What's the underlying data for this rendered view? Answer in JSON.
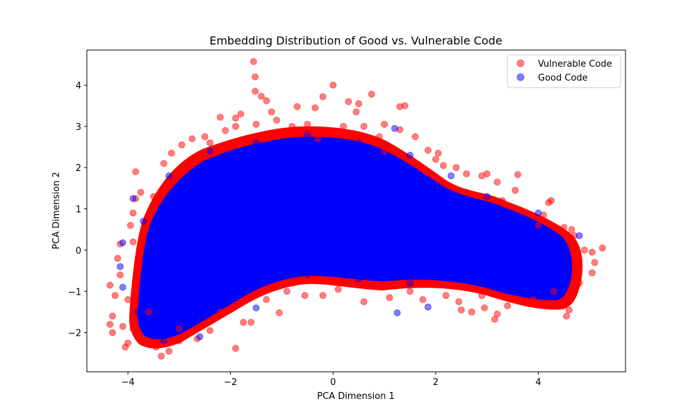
{
  "chart_data": {
    "type": "scatter",
    "title": "Embedding Distribution of Good vs. Vulnerable Code",
    "xlabel": "PCA Dimension 1",
    "ylabel": "PCA Dimension 2",
    "xlim": [
      -4.8,
      5.7
    ],
    "ylim": [
      -2.95,
      4.85
    ],
    "xticks": [
      -4,
      -2,
      0,
      2,
      4
    ],
    "xtick_labels": [
      "−4",
      "−2",
      "0",
      "2",
      "4"
    ],
    "yticks": [
      -2,
      -1,
      0,
      1,
      2,
      3,
      4
    ],
    "ytick_labels": [
      "−2",
      "−1",
      "0",
      "1",
      "2",
      "3",
      "4"
    ],
    "grid": false,
    "legend_position": "top-right",
    "series": [
      {
        "name": "Vulnerable Code",
        "color": "#ff0000",
        "alpha": 0.5,
        "points": [
          [
            -1.55,
            4.57
          ],
          [
            -1.52,
            4.2
          ],
          [
            -1.52,
            3.85
          ],
          [
            -1.4,
            3.73
          ],
          [
            -1.3,
            3.62
          ],
          [
            0.0,
            4.0
          ],
          [
            0.75,
            3.78
          ],
          [
            -0.2,
            3.72
          ],
          [
            0.3,
            3.6
          ],
          [
            0.5,
            3.55
          ],
          [
            1.3,
            3.48
          ],
          [
            1.4,
            3.5
          ],
          [
            -0.7,
            3.48
          ],
          [
            -0.35,
            3.45
          ],
          [
            0.45,
            3.35
          ],
          [
            -1.8,
            3.3
          ],
          [
            -1.2,
            3.35
          ],
          [
            -2.2,
            3.22
          ],
          [
            -1.9,
            3.2
          ],
          [
            -1.1,
            3.15
          ],
          [
            1.0,
            3.05
          ],
          [
            1.3,
            2.92
          ],
          [
            1.6,
            2.75
          ],
          [
            1.85,
            2.42
          ],
          [
            2.0,
            2.2
          ],
          [
            2.05,
            2.35
          ],
          [
            2.15,
            2.05
          ],
          [
            2.4,
            2.0
          ],
          [
            2.6,
            1.85
          ],
          [
            2.9,
            1.8
          ],
          [
            3.0,
            1.85
          ],
          [
            3.2,
            1.65
          ],
          [
            3.6,
            1.83
          ],
          [
            3.55,
            1.45
          ],
          [
            4.25,
            1.2
          ],
          [
            4.2,
            1.15
          ],
          [
            4.1,
            0.85
          ],
          [
            4.5,
            0.55
          ],
          [
            4.65,
            0.5
          ],
          [
            4.7,
            0.35
          ],
          [
            5.25,
            0.05
          ],
          [
            5.05,
            -0.05
          ],
          [
            5.1,
            -0.3
          ],
          [
            5.05,
            -0.55
          ],
          [
            4.6,
            -1.45
          ],
          [
            4.55,
            -1.6
          ],
          [
            3.9,
            -1.2
          ],
          [
            3.4,
            -1.35
          ],
          [
            3.2,
            -1.55
          ],
          [
            3.15,
            -1.68
          ],
          [
            2.95,
            -1.4
          ],
          [
            2.7,
            -1.5
          ],
          [
            2.5,
            -1.45
          ],
          [
            2.45,
            -1.25
          ],
          [
            1.75,
            -1.2
          ],
          [
            1.1,
            -1.15
          ],
          [
            0.6,
            -1.25
          ],
          [
            -0.2,
            -1.1
          ],
          [
            -0.55,
            -1.1
          ],
          [
            -1.05,
            -1.52
          ],
          [
            -1.6,
            -1.75
          ],
          [
            -1.75,
            -1.75
          ],
          [
            -1.9,
            -2.38
          ],
          [
            -2.4,
            -1.95
          ],
          [
            -2.65,
            -2.15
          ],
          [
            -3.0,
            -2.2
          ],
          [
            -3.2,
            -2.45
          ],
          [
            -3.35,
            -2.57
          ],
          [
            -3.45,
            -2.35
          ],
          [
            -3.75,
            -2.15
          ],
          [
            -4.0,
            -2.25
          ],
          [
            -4.05,
            -2.35
          ],
          [
            -4.1,
            -1.85
          ],
          [
            -4.3,
            -2.0
          ],
          [
            -4.3,
            -1.6
          ],
          [
            -4.35,
            -1.8
          ],
          [
            -4.25,
            -1.1
          ],
          [
            -4.35,
            -0.85
          ],
          [
            -4.15,
            -0.6
          ],
          [
            -4.2,
            -0.2
          ],
          [
            -4.15,
            0.15
          ],
          [
            -3.95,
            0.6
          ],
          [
            -3.9,
            0.9
          ],
          [
            -3.85,
            1.25
          ],
          [
            -3.75,
            1.4
          ],
          [
            -3.85,
            1.9
          ],
          [
            -3.3,
            2.1
          ],
          [
            -3.15,
            2.35
          ],
          [
            -2.95,
            2.55
          ],
          [
            -2.75,
            2.7
          ],
          [
            -2.5,
            2.75
          ],
          [
            -2.4,
            2.6
          ],
          [
            -2.1,
            2.9
          ],
          [
            -1.9,
            3.0
          ],
          [
            -1.5,
            3.05
          ],
          [
            -0.8,
            3.0
          ],
          [
            -0.5,
            3.05
          ],
          [
            0.2,
            3.0
          ],
          [
            0.6,
            3.0
          ],
          [
            0.9,
            2.75
          ],
          [
            -3.6,
            -1.5
          ],
          [
            -3.0,
            -1.9
          ],
          [
            -2.2,
            -1.5
          ],
          [
            -1.3,
            -1.2
          ],
          [
            -0.9,
            -1.0
          ],
          [
            0.1,
            -0.95
          ],
          [
            1.5,
            -1.0
          ],
          [
            2.2,
            -1.1
          ],
          [
            2.9,
            -1.1
          ],
          [
            3.6,
            -1.2
          ],
          [
            4.3,
            -1.0
          ],
          [
            4.8,
            -0.8
          ],
          [
            4.9,
            0.0
          ],
          [
            4.0,
            0.6
          ],
          [
            3.3,
            1.2
          ],
          [
            2.6,
            1.4
          ],
          [
            1.8,
            1.9
          ],
          [
            1.0,
            2.4
          ],
          [
            -0.3,
            2.7
          ],
          [
            -1.3,
            2.7
          ],
          [
            -2.6,
            2.2
          ],
          [
            -3.5,
            1.3
          ],
          [
            -3.9,
            0.2
          ],
          [
            -4.0,
            -1.2
          ],
          [
            -3.9,
            -1.9
          ]
        ]
      },
      {
        "name": "Good Code",
        "color": "#0000ff",
        "alpha": 0.5,
        "points": [
          [
            -4.1,
            0.18
          ],
          [
            -4.15,
            -0.4
          ],
          [
            -4.1,
            -0.9
          ],
          [
            1.25,
            -1.52
          ],
          [
            1.85,
            -1.38
          ],
          [
            1.2,
            2.95
          ],
          [
            -3.9,
            1.25
          ],
          [
            -3.6,
            0.1
          ],
          [
            -3.2,
            -1.0
          ],
          [
            -2.6,
            -2.1
          ],
          [
            -1.5,
            -1.4
          ],
          [
            -0.5,
            -0.6
          ],
          [
            0.5,
            -0.7
          ],
          [
            1.5,
            -0.8
          ],
          [
            2.5,
            -0.5
          ],
          [
            3.5,
            -0.6
          ],
          [
            4.5,
            -0.9
          ],
          [
            4.8,
            0.35
          ],
          [
            4.0,
            0.9
          ],
          [
            3.0,
            1.3
          ],
          [
            2.3,
            1.8
          ],
          [
            1.5,
            2.3
          ],
          [
            0.5,
            2.6
          ],
          [
            -0.5,
            2.8
          ],
          [
            -1.5,
            2.6
          ],
          [
            -2.4,
            2.4
          ],
          [
            -3.2,
            1.8
          ],
          [
            -3.7,
            0.7
          ],
          [
            -3.8,
            -1.5
          ],
          [
            -3.3,
            -2.2
          ],
          [
            -2.0,
            1.0
          ],
          [
            -1.0,
            1.5
          ],
          [
            0.0,
            1.2
          ],
          [
            1.0,
            0.8
          ],
          [
            2.0,
            0.2
          ],
          [
            -2.5,
            0.0
          ],
          [
            -1.5,
            -0.3
          ],
          [
            3.0,
            -0.2
          ],
          [
            4.2,
            -0.3
          ],
          [
            -3.0,
            0.8
          ]
        ]
      }
    ]
  }
}
